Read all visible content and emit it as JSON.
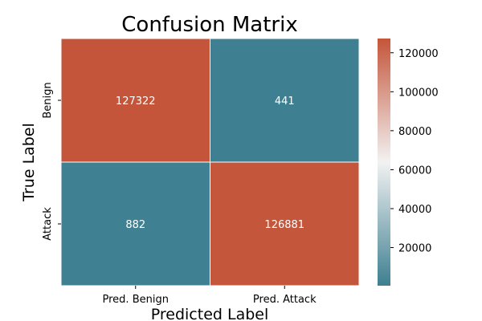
{
  "chart_data": {
    "type": "heatmap",
    "title": "Confusion Matrix",
    "xlabel": "Predicted Label",
    "ylabel": "True Label",
    "x_categories": [
      "Pred. Benign",
      "Pred. Attack"
    ],
    "y_categories": [
      "Benign",
      "Attack"
    ],
    "values": [
      [
        127322,
        441
      ],
      [
        882,
        126881
      ]
    ],
    "cell_labels": [
      [
        "127322",
        "441"
      ],
      [
        "882",
        "126881"
      ]
    ],
    "colorbar": {
      "min": 441,
      "max": 127322,
      "ticks": [
        20000,
        40000,
        60000,
        80000,
        100000,
        120000
      ],
      "tick_labels": [
        "20000",
        "40000",
        "60000",
        "80000",
        "100000",
        "120000"
      ],
      "colors": [
        "#3e7f91",
        "#f2f2f2",
        "#c4553a"
      ]
    },
    "cell_text_color": "#ffffff"
  }
}
